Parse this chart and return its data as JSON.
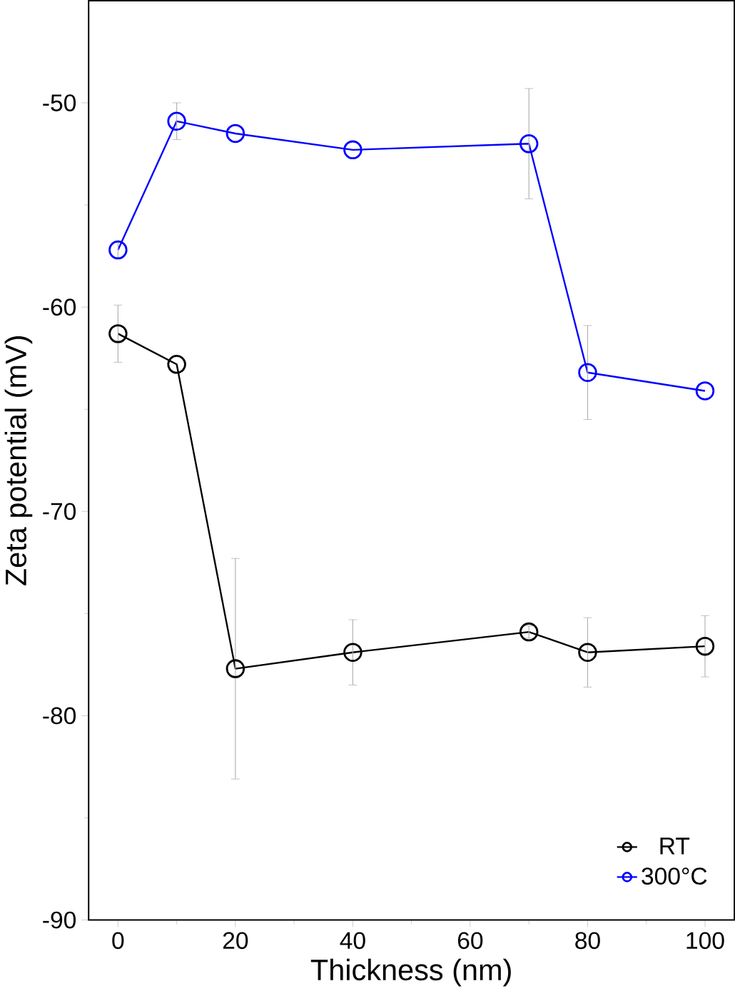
{
  "chart_data": {
    "type": "line",
    "xlabel": "Thickness (nm)",
    "ylabel": "Zeta potential (mV)",
    "xlim": [
      -5,
      105
    ],
    "ylim": [
      -90,
      -45
    ],
    "xticks": [
      0,
      20,
      40,
      60,
      80,
      100
    ],
    "yticks": [
      -90,
      -80,
      -70,
      -60,
      -50
    ],
    "marker": "circle",
    "legend": "bottom right",
    "grid": false,
    "series": [
      {
        "name": "RT",
        "color": "#000000",
        "x": [
          0,
          10,
          20,
          40,
          70,
          80,
          100
        ],
        "values": [
          -61.3,
          -62.8,
          -77.7,
          -76.9,
          -75.9,
          -76.9,
          -76.6
        ],
        "errors": [
          1.4,
          null,
          5.4,
          1.6,
          0.3,
          1.7,
          1.5
        ]
      },
      {
        "name": "300°C",
        "color": "#0000ff",
        "x": [
          0,
          10,
          20,
          40,
          70,
          80,
          100
        ],
        "values": [
          -57.2,
          -50.9,
          -51.5,
          -52.3,
          -52.0,
          -63.2,
          -64.1
        ],
        "errors": [
          0.4,
          0.9,
          null,
          null,
          2.7,
          2.3,
          null
        ]
      }
    ]
  }
}
